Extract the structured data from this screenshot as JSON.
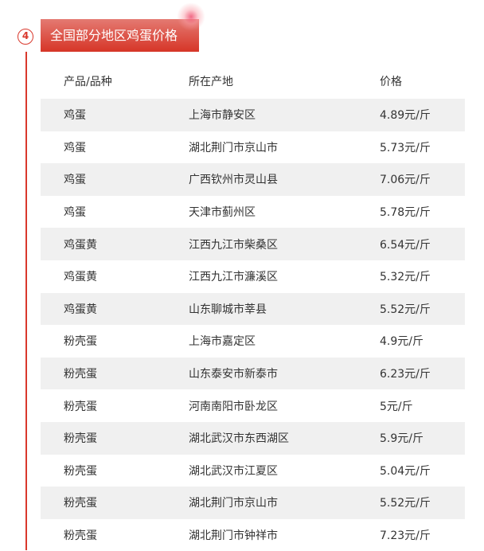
{
  "section": {
    "number": "4",
    "title": "全国部分地区鸡蛋价格",
    "accent": "#d9382c"
  },
  "table": {
    "headers": [
      "产品/品种",
      "所在产地",
      "价格"
    ],
    "rows": [
      [
        "鸡蛋",
        "上海市静安区",
        "4.89元/斤"
      ],
      [
        "鸡蛋",
        "湖北荆门市京山市",
        "5.73元/斤"
      ],
      [
        "鸡蛋",
        "广西钦州市灵山县",
        "7.06元/斤"
      ],
      [
        "鸡蛋",
        "天津市蓟州区",
        "5.78元/斤"
      ],
      [
        "鸡蛋黄",
        "江西九江市柴桑区",
        "6.54元/斤"
      ],
      [
        "鸡蛋黄",
        "江西九江市濂溪区",
        "5.32元/斤"
      ],
      [
        "鸡蛋黄",
        "山东聊城市莘县",
        "5.52元/斤"
      ],
      [
        "粉壳蛋",
        "上海市嘉定区",
        "4.9元/斤"
      ],
      [
        "粉壳蛋",
        "山东泰安市新泰市",
        "6.23元/斤"
      ],
      [
        "粉壳蛋",
        "河南南阳市卧龙区",
        "5元/斤"
      ],
      [
        "粉壳蛋",
        "湖北武汉市东西湖区",
        "5.9元/斤"
      ],
      [
        "粉壳蛋",
        "湖北武汉市江夏区",
        "5.04元/斤"
      ],
      [
        "粉壳蛋",
        "湖北荆门市京山市",
        "5.52元/斤"
      ],
      [
        "粉壳蛋",
        "湖北荆门市钟祥市",
        "7.23元/斤"
      ]
    ]
  }
}
